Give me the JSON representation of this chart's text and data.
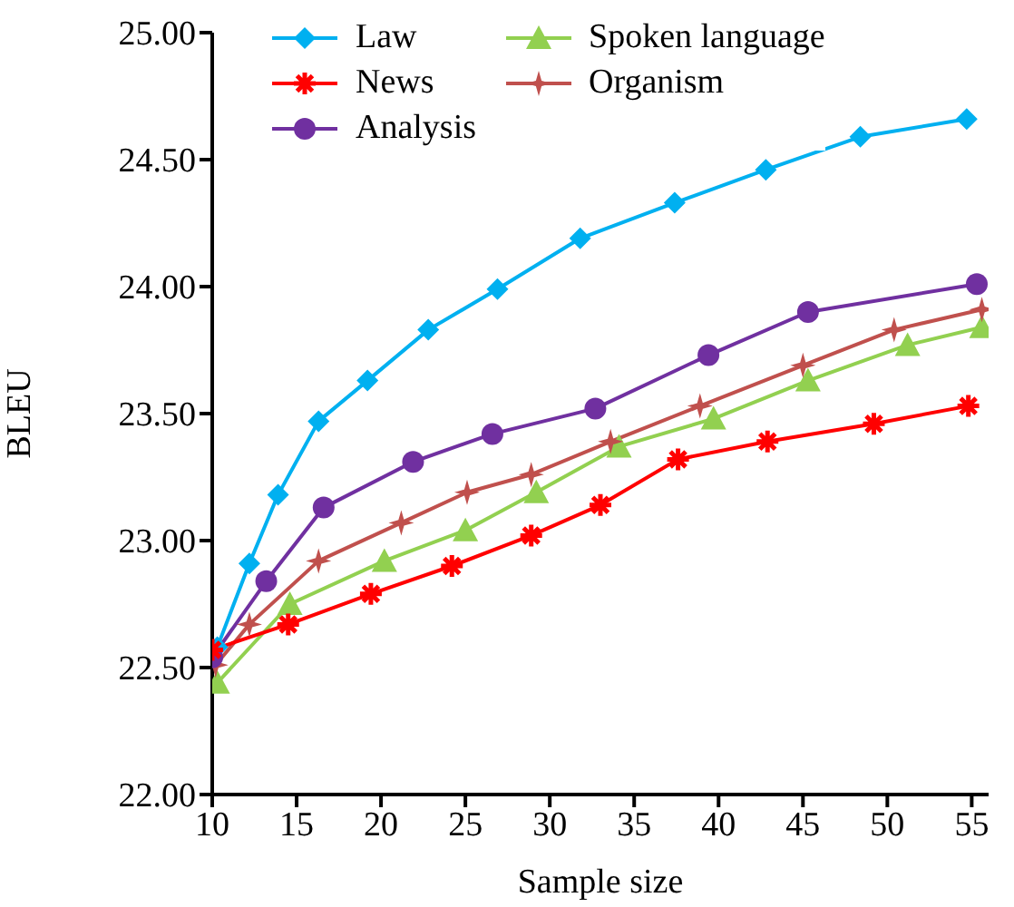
{
  "chart_data": {
    "type": "line",
    "xlabel": "Sample size",
    "ylabel": "BLEU",
    "xlim": [
      10,
      56
    ],
    "xticks": [
      10,
      15,
      20,
      25,
      30,
      35,
      40,
      45,
      50,
      55
    ],
    "ylim": [
      22,
      25
    ],
    "yticks": [
      {
        "value": 22,
        "label": "22.00"
      },
      {
        "value": 22.5,
        "label": "22.50"
      },
      {
        "value": 23,
        "label": "23.00"
      },
      {
        "value": 23.5,
        "label": "23.50"
      },
      {
        "value": 24,
        "label": "24.00"
      },
      {
        "value": 24.5,
        "label": "24.50"
      },
      {
        "value": 25,
        "label": "25.00"
      }
    ],
    "grid": false,
    "legend": "top left",
    "series": [
      {
        "name": "Law",
        "color": "#00b0f0",
        "marker": "diamond",
        "x": [
          10.3,
          12.2,
          13.9,
          16.3,
          19.2,
          22.8,
          26.9,
          31.8,
          37.4,
          42.8,
          48.4,
          54.7
        ],
        "values": [
          22.58,
          22.91,
          23.18,
          23.47,
          23.63,
          23.83,
          23.99,
          24.19,
          24.33,
          24.46,
          24.59,
          24.66
        ]
      },
      {
        "name": "Spoken language",
        "color": "#92d050",
        "marker": "triangle",
        "x": [
          10.3,
          14.6,
          20.2,
          25,
          29.2,
          34.1,
          39.7,
          45.3,
          51.2,
          55.6
        ],
        "values": [
          22.44,
          22.75,
          22.92,
          23.04,
          23.19,
          23.37,
          23.48,
          23.63,
          23.77,
          23.84
        ]
      },
      {
        "name": "News",
        "color": "#ff0000",
        "marker": "cross",
        "x": [
          10,
          14.5,
          19.4,
          24.2,
          28.9,
          33,
          37.6,
          42.9,
          49.2,
          54.8
        ],
        "values": [
          22.57,
          22.67,
          22.79,
          22.9,
          23.02,
          23.14,
          23.32,
          23.39,
          23.46,
          23.53
        ]
      },
      {
        "name": "Organism",
        "color": "#c0504d",
        "marker": "star",
        "x": [
          10.2,
          12.2,
          16.3,
          21.2,
          25.1,
          28.9,
          33.6,
          38.9,
          45,
          50.4,
          55.6
        ],
        "values": [
          22.51,
          22.67,
          22.92,
          23.07,
          23.19,
          23.26,
          23.39,
          23.53,
          23.69,
          23.83,
          23.91
        ]
      },
      {
        "name": "Analysis",
        "color": "#7030a0",
        "marker": "circle",
        "x": [
          10,
          13.2,
          16.6,
          21.9,
          26.6,
          32.7,
          39.4,
          45.3,
          55.3
        ],
        "values": [
          22.54,
          22.84,
          23.13,
          23.31,
          23.42,
          23.52,
          23.73,
          23.9,
          24.01
        ]
      }
    ]
  }
}
